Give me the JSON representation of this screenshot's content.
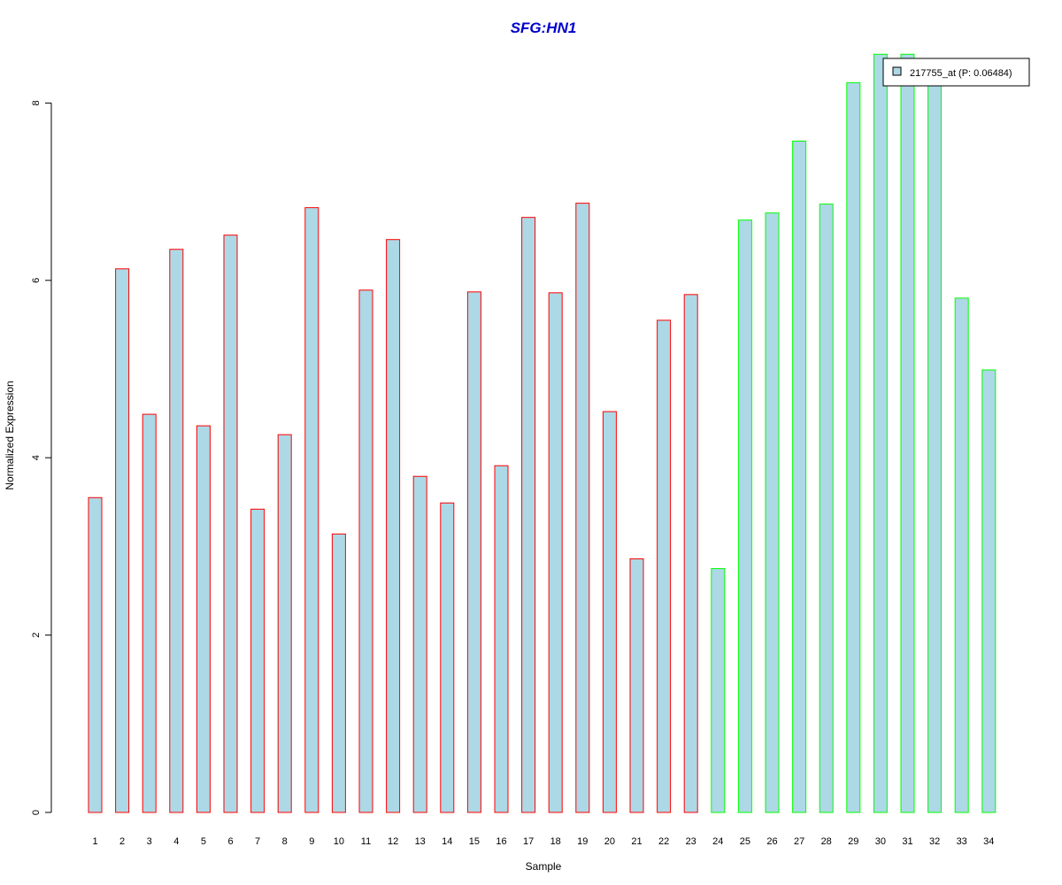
{
  "chart_data": {
    "type": "bar",
    "title": "SFG:HN1",
    "xlabel": "Sample",
    "ylabel": "Normalized Expression",
    "ylim": [
      0,
      8.6
    ],
    "y_ticks": [
      0,
      2,
      4,
      6,
      8
    ],
    "grid": false,
    "legend_position": "top-right",
    "categories": [
      "1",
      "2",
      "3",
      "4",
      "5",
      "6",
      "7",
      "8",
      "9",
      "10",
      "11",
      "12",
      "13",
      "14",
      "15",
      "16",
      "17",
      "18",
      "19",
      "20",
      "21",
      "22",
      "23",
      "24",
      "25",
      "26",
      "27",
      "28",
      "29",
      "30",
      "31",
      "32",
      "33",
      "34"
    ],
    "series": [
      {
        "name": "217755_at (P: 0.06484)",
        "values": [
          3.55,
          6.13,
          4.49,
          6.35,
          4.36,
          6.51,
          3.42,
          4.26,
          6.82,
          3.14,
          5.89,
          6.46,
          3.79,
          3.49,
          5.87,
          3.91,
          6.71,
          5.86,
          6.87,
          4.52,
          2.86,
          5.55,
          5.84,
          2.75,
          6.68,
          6.76,
          7.57,
          6.86,
          8.23,
          8.55,
          8.55,
          8.25,
          5.8,
          4.99
        ],
        "fill_color": "#add8e6",
        "border_colors": [
          "#ff0000",
          "#ff0000",
          "#ff0000",
          "#ff0000",
          "#ff0000",
          "#ff0000",
          "#ff0000",
          "#ff0000",
          "#ff0000",
          "#ff0000",
          "#ff0000",
          "#ff0000",
          "#ff0000",
          "#ff0000",
          "#ff0000",
          "#ff0000",
          "#ff0000",
          "#ff0000",
          "#ff0000",
          "#ff0000",
          "#ff0000",
          "#ff0000",
          "#ff0000",
          "#00ff00",
          "#00ff00",
          "#00ff00",
          "#00ff00",
          "#00ff00",
          "#00ff00",
          "#00ff00",
          "#00ff00",
          "#00ff00",
          "#00ff00",
          "#00ff00"
        ]
      }
    ]
  },
  "colors": {
    "title": "#0000cd",
    "bar_fill": "#add8e6",
    "group1_border": "#ff0000",
    "group2_border": "#00ff00"
  }
}
